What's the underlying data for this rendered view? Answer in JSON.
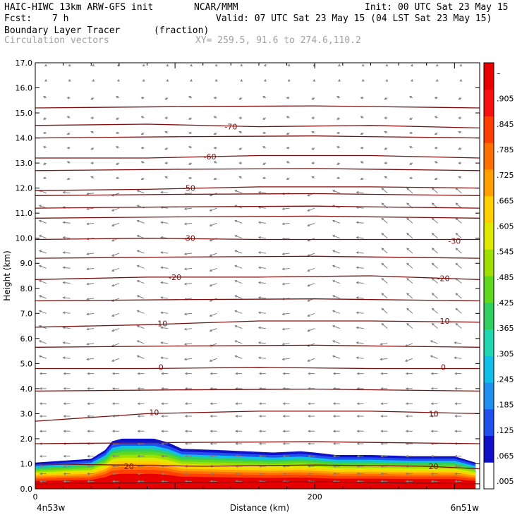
{
  "header": {
    "model": "HAIC-HIWC 13km ARW-GFS init",
    "org": "NCAR/MMM",
    "init": "Init: 00 UTC Sat 23 May 15",
    "fcst_label": "Fcst:",
    "fcst_value": "7 h",
    "valid": "Valid: 07 UTC Sat 23 May 15 (04 LST Sat 23 May 15)",
    "field": "Boundary Layer Tracer",
    "units": "(fraction)",
    "overlay": "Circulation vectors",
    "xy": "XY= 259.5, 91.6 to 274.6,110.2"
  },
  "colors": {
    "contour": "#7a1010",
    "vectors": "#808080",
    "tracer_scale": [
      "#ffffff",
      "#1010c8",
      "#2050f0",
      "#2090f0",
      "#10c0e8",
      "#20d8b0",
      "#30d060",
      "#60d820",
      "#a0e000",
      "#e0e800",
      "#ffd000",
      "#ffa000",
      "#ff7000",
      "#ff4000",
      "#f81010",
      "#e80000"
    ]
  },
  "chart_data": {
    "type": "heatmap",
    "ylabel": "Height (km)",
    "xlabel": "Distance (km)",
    "x_start_label": "4n53w",
    "x_end_label": "6n51w",
    "ylim": [
      0,
      17
    ],
    "xlim": [
      0,
      318
    ],
    "yticks": [
      "0.0",
      "1.0",
      "2.0",
      "3.0",
      "4.0",
      "5.0",
      "6.0",
      "7.0",
      "8.0",
      "9.0",
      "10.0",
      "11.0",
      "12.0",
      "13.0",
      "14.0",
      "15.0",
      "16.0",
      "17.0"
    ],
    "xticks": [
      {
        "value": 0,
        "label": "0"
      },
      {
        "value": 200,
        "label": "200"
      }
    ],
    "colorbar": {
      "labels": [
        ".005",
        ".065",
        ".125",
        ".185",
        ".245",
        ".305",
        ".365",
        ".425",
        ".485",
        ".545",
        ".605",
        ".665",
        ".725",
        ".785",
        ".845",
        ".905",
        "–"
      ]
    },
    "tracer_top_km": [
      [
        0,
        1.05
      ],
      [
        40,
        1.2
      ],
      [
        50,
        1.55
      ],
      [
        55,
        1.9
      ],
      [
        62,
        2.0
      ],
      [
        85,
        2.0
      ],
      [
        95,
        1.85
      ],
      [
        105,
        1.6
      ],
      [
        130,
        1.55
      ],
      [
        170,
        1.45
      ],
      [
        190,
        1.5
      ],
      [
        200,
        1.45
      ],
      [
        215,
        1.35
      ],
      [
        240,
        1.35
      ],
      [
        270,
        1.3
      ],
      [
        300,
        1.3
      ],
      [
        315,
        1.05
      ]
    ],
    "temperature_contours": [
      {
        "label": "20",
        "points": [
          [
            0,
            1.0
          ],
          [
            60,
            0.95
          ],
          [
            120,
            0.9
          ],
          [
            200,
            0.95
          ],
          [
            280,
            0.9
          ],
          [
            318,
            0.8
          ]
        ],
        "label_at": [
          [
            67,
            0.9
          ],
          [
            285,
            0.9
          ]
        ]
      },
      {
        "label": "10",
        "points": [
          [
            0,
            2.7
          ],
          [
            80,
            3.0
          ],
          [
            160,
            3.1
          ],
          [
            240,
            3.1
          ],
          [
            318,
            3.0
          ]
        ],
        "label_at": [
          [
            85,
            3.05
          ],
          [
            285,
            3.0
          ]
        ]
      },
      {
        "label": "0",
        "points": [
          [
            0,
            4.8
          ],
          [
            80,
            4.8
          ],
          [
            160,
            4.85
          ],
          [
            240,
            4.8
          ],
          [
            318,
            4.8
          ]
        ],
        "label_at": [
          [
            90,
            4.85
          ],
          [
            292,
            4.85
          ]
        ]
      },
      {
        "label": "-10",
        "points": [
          [
            0,
            6.45
          ],
          [
            80,
            6.55
          ],
          [
            160,
            6.7
          ],
          [
            240,
            6.7
          ],
          [
            318,
            6.65
          ]
        ],
        "label_at": [
          [
            90,
            6.6
          ],
          [
            292,
            6.7
          ]
        ]
      },
      {
        "label": "-20",
        "points": [
          [
            0,
            8.35
          ],
          [
            80,
            8.45
          ],
          [
            160,
            8.45
          ],
          [
            240,
            8.5
          ],
          [
            318,
            8.35
          ]
        ],
        "label_at": [
          [
            100,
            8.45
          ],
          [
            292,
            8.4
          ]
        ]
      },
      {
        "label": "-30",
        "points": [
          [
            0,
            9.95
          ],
          [
            80,
            10.0
          ],
          [
            160,
            9.95
          ],
          [
            240,
            9.95
          ],
          [
            318,
            9.95
          ]
        ],
        "label_at": [
          [
            110,
            10.0
          ],
          [
            300,
            9.9
          ]
        ]
      },
      {
        "label": "-50",
        "points": [
          [
            0,
            11.9
          ],
          [
            80,
            11.95
          ],
          [
            160,
            12.05
          ],
          [
            240,
            12.05
          ],
          [
            318,
            12.0
          ]
        ],
        "label_at": [
          [
            110,
            12.0
          ]
        ]
      },
      {
        "label": "-60",
        "points": [
          [
            0,
            13.2
          ],
          [
            80,
            13.2
          ],
          [
            160,
            13.3
          ],
          [
            240,
            13.3
          ],
          [
            318,
            13.2
          ]
        ],
        "label_at": [
          [
            125,
            13.25
          ]
        ]
      },
      {
        "label": "-70",
        "points": [
          [
            0,
            14.5
          ],
          [
            80,
            14.55
          ],
          [
            160,
            14.45
          ],
          [
            240,
            14.5
          ],
          [
            318,
            14.4
          ]
        ],
        "label_at": [
          [
            140,
            14.45
          ]
        ]
      }
    ],
    "unlabeled_contour_heights": [
      0.2,
      1.8,
      3.9,
      5.65,
      7.5,
      9.2,
      10.8,
      11.2,
      11.7,
      12.7,
      14.0,
      15.2
    ],
    "vector_columns_km": [
      8,
      25,
      42,
      60,
      78,
      95,
      112,
      130,
      148,
      165,
      182,
      200,
      218,
      235,
      252,
      270,
      288,
      305
    ],
    "vector_rows_km": [
      0.3,
      0.6,
      0.9,
      1.3,
      1.8,
      2.3,
      2.9,
      3.4,
      4.0,
      4.6,
      5.2,
      5.8,
      6.4,
      7.0,
      7.6,
      8.2,
      8.8,
      9.4,
      10.0,
      10.6,
      11.2,
      11.8,
      12.4,
      13.0,
      13.6,
      14.2,
      14.8,
      15.6,
      16.3,
      16.9
    ]
  }
}
